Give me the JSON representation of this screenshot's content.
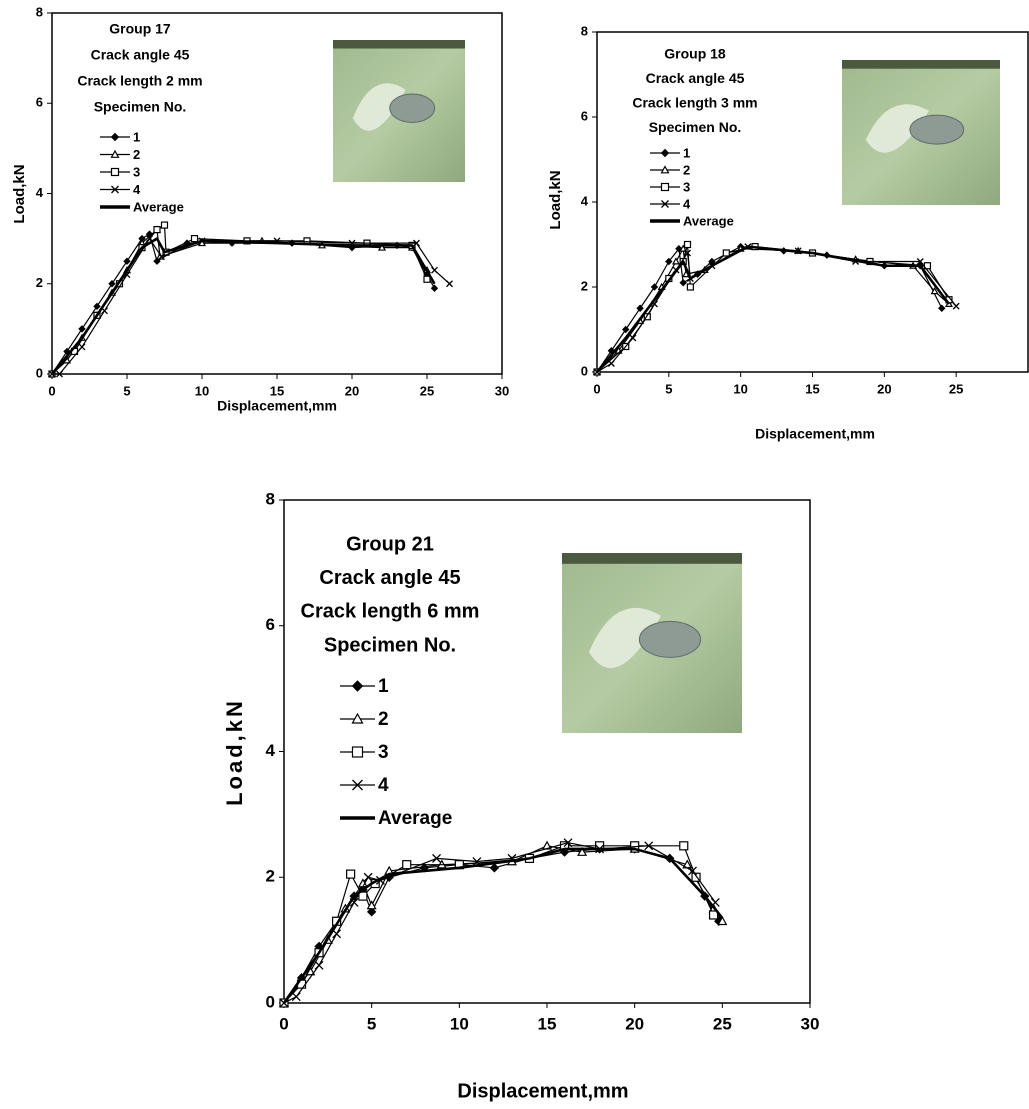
{
  "chart_data": [
    {
      "type": "line",
      "annotations": [
        "Group 17",
        "Crack angle 45",
        "Crack length  2 mm",
        "Specimen No."
      ],
      "xlabel": "Displacement,mm",
      "ylabel": "Load,kN",
      "xlim": [
        0,
        30
      ],
      "xticks": [
        0,
        5,
        10,
        15,
        20,
        25,
        30
      ],
      "ylim": [
        0,
        8
      ],
      "yticks": [
        0,
        2,
        4,
        6,
        8
      ],
      "series": [
        {
          "name": "1",
          "color": "#000000",
          "marker": "diamond",
          "x": [
            0,
            1,
            2,
            3,
            4,
            5,
            6,
            6.5,
            7,
            9,
            12,
            16,
            20,
            23,
            24,
            25,
            25.5
          ],
          "values": [
            0,
            0.5,
            1,
            1.5,
            2,
            2.5,
            3,
            3.1,
            2.5,
            2.9,
            2.9,
            2.9,
            2.8,
            2.85,
            2.8,
            2.2,
            1.9
          ]
        },
        {
          "name": "2",
          "color": "#000000",
          "marker": "triangle",
          "x": [
            0,
            1,
            2,
            3,
            4,
            5,
            6,
            7,
            7.2,
            10,
            14,
            18,
            22,
            24,
            25
          ],
          "values": [
            0,
            0.3,
            0.8,
            1.3,
            1.8,
            2.3,
            2.9,
            3.2,
            2.6,
            2.9,
            2.95,
            2.85,
            2.8,
            2.8,
            2.3
          ]
        },
        {
          "name": "3",
          "color": "#000000",
          "marker": "square",
          "x": [
            0,
            1.5,
            3,
            4.5,
            6,
            7,
            7.5,
            7.6,
            9.5,
            13,
            17,
            21,
            24,
            25
          ],
          "values": [
            0,
            0.5,
            1.3,
            2,
            2.8,
            3.2,
            3.3,
            2.7,
            3.0,
            2.95,
            2.95,
            2.9,
            2.85,
            2.1
          ]
        },
        {
          "name": "4",
          "color": "#000000",
          "marker": "cross",
          "x": [
            0,
            0.5,
            2,
            3.5,
            5,
            6.5,
            7.3,
            10,
            15,
            20,
            24.3,
            25.5,
            26.5
          ],
          "values": [
            0,
            0,
            0.6,
            1.4,
            2.2,
            3.0,
            2.6,
            2.95,
            2.95,
            2.9,
            2.9,
            2.3,
            2.0
          ]
        },
        {
          "name": "Average",
          "color": "#000000",
          "x": [
            0,
            2,
            4,
            6,
            7,
            7.5,
            10,
            15,
            20,
            24,
            25.5
          ],
          "values": [
            0,
            0.8,
            1.8,
            2.8,
            3.0,
            2.7,
            2.95,
            2.9,
            2.85,
            2.85,
            2.0
          ]
        }
      ]
    },
    {
      "type": "line",
      "annotations": [
        "Group 18",
        "Crack angle 45",
        "Crack length  3 mm",
        "Specimen No."
      ],
      "xlabel": "Displacement,mm",
      "ylabel": "Load,kN",
      "xlim": [
        0,
        30
      ],
      "xticks": [
        0,
        5,
        10,
        15,
        20,
        25
      ],
      "ylim": [
        0,
        8
      ],
      "yticks": [
        0,
        2,
        4,
        6,
        8
      ],
      "series": [
        {
          "name": "1",
          "color": "#000000",
          "marker": "diamond",
          "x": [
            0,
            1,
            2,
            3,
            4,
            5,
            5.7,
            6,
            7,
            8,
            10,
            13,
            16,
            20,
            22.5,
            24
          ],
          "values": [
            0,
            0.5,
            1,
            1.5,
            2,
            2.6,
            2.9,
            2.1,
            2.3,
            2.6,
            2.95,
            2.85,
            2.75,
            2.5,
            2.5,
            1.5
          ]
        },
        {
          "name": "2",
          "color": "#000000",
          "marker": "triangle",
          "x": [
            0,
            1.5,
            3,
            4.5,
            5.5,
            6,
            6.2,
            7.5,
            10,
            14,
            18,
            22,
            23.5,
            24.5
          ],
          "values": [
            0,
            0.5,
            1.2,
            2,
            2.6,
            2.9,
            2.3,
            2.4,
            2.9,
            2.85,
            2.65,
            2.5,
            1.9,
            1.6
          ]
        },
        {
          "name": "3",
          "color": "#000000",
          "marker": "square",
          "x": [
            0,
            2,
            3.5,
            5,
            6,
            6.3,
            6.5,
            9,
            11,
            15,
            19,
            23,
            24.5
          ],
          "values": [
            0,
            0.6,
            1.3,
            2.2,
            2.6,
            3.0,
            2.0,
            2.8,
            2.95,
            2.8,
            2.6,
            2.5,
            1.7
          ]
        },
        {
          "name": "4",
          "color": "#000000",
          "marker": "cross",
          "x": [
            0,
            1,
            2.5,
            4,
            5.5,
            6.3,
            6.5,
            8,
            10.5,
            14,
            18,
            22.5,
            25
          ],
          "values": [
            0,
            0.2,
            0.8,
            1.6,
            2.4,
            2.8,
            2.2,
            2.5,
            2.95,
            2.85,
            2.6,
            2.6,
            1.55
          ]
        },
        {
          "name": "Average",
          "color": "#000000",
          "x": [
            0,
            2,
            4,
            6,
            6.5,
            8,
            10.5,
            15,
            20,
            22.5,
            24.5
          ],
          "values": [
            0,
            0.8,
            1.7,
            2.6,
            2.2,
            2.5,
            2.95,
            2.8,
            2.5,
            2.5,
            1.6
          ]
        }
      ]
    },
    {
      "type": "line",
      "annotations": [
        "Group 21",
        "Crack angle 45",
        "Crack length 6 mm",
        "Specimen No."
      ],
      "xlabel": "Displacement,mm",
      "ylabel": "Load,kN",
      "xlim": [
        0,
        30
      ],
      "xticks": [
        0,
        5,
        10,
        15,
        20,
        25,
        30
      ],
      "ylim": [
        0,
        8
      ],
      "yticks": [
        0,
        2,
        4,
        6,
        8
      ],
      "series": [
        {
          "name": "1",
          "color": "#000000",
          "marker": "diamond",
          "x": [
            0,
            1,
            2,
            3,
            4,
            4.5,
            5,
            6,
            8,
            10,
            12,
            14,
            16,
            18,
            20,
            22,
            24,
            24.8
          ],
          "values": [
            0,
            0.4,
            0.9,
            1.3,
            1.7,
            1.8,
            1.45,
            2.0,
            2.15,
            2.2,
            2.15,
            2.3,
            2.4,
            2.45,
            2.45,
            2.3,
            1.7,
            1.3
          ]
        },
        {
          "name": "2",
          "color": "#000000",
          "marker": "triangle",
          "x": [
            0,
            1.5,
            2.5,
            3.5,
            4.5,
            5,
            6,
            9,
            13,
            15,
            17,
            20,
            23,
            24.5,
            25
          ],
          "values": [
            0,
            0.5,
            1.0,
            1.5,
            1.9,
            1.55,
            2.1,
            2.2,
            2.25,
            2.5,
            2.4,
            2.45,
            2.2,
            1.5,
            1.3
          ]
        },
        {
          "name": "3",
          "color": "#000000",
          "marker": "square",
          "x": [
            0,
            1,
            2,
            3,
            3.8,
            4.5,
            5.2,
            7,
            10,
            14,
            16,
            18,
            20,
            22.8,
            23.5,
            24.5
          ],
          "values": [
            0,
            0.3,
            0.8,
            1.3,
            2.05,
            1.7,
            1.9,
            2.2,
            2.2,
            2.3,
            2.5,
            2.5,
            2.5,
            2.5,
            2.0,
            1.4
          ]
        },
        {
          "name": "4",
          "color": "#000000",
          "marker": "cross",
          "x": [
            0,
            0.7,
            2,
            3,
            4,
            4.8,
            5.5,
            8.7,
            11,
            13,
            16.2,
            18,
            20.8,
            23.3,
            24.6
          ],
          "values": [
            0,
            0.1,
            0.6,
            1.1,
            1.6,
            2.0,
            1.95,
            2.3,
            2.25,
            2.3,
            2.55,
            2.45,
            2.5,
            2.1,
            1.6
          ]
        },
        {
          "name": "Average",
          "color": "#000000",
          "x": [
            0,
            2,
            4,
            5,
            6,
            10,
            14,
            16,
            20,
            22,
            24,
            25
          ],
          "values": [
            0,
            0.8,
            1.7,
            1.9,
            2.05,
            2.15,
            2.3,
            2.45,
            2.45,
            2.3,
            1.7,
            1.35
          ]
        }
      ]
    }
  ]
}
